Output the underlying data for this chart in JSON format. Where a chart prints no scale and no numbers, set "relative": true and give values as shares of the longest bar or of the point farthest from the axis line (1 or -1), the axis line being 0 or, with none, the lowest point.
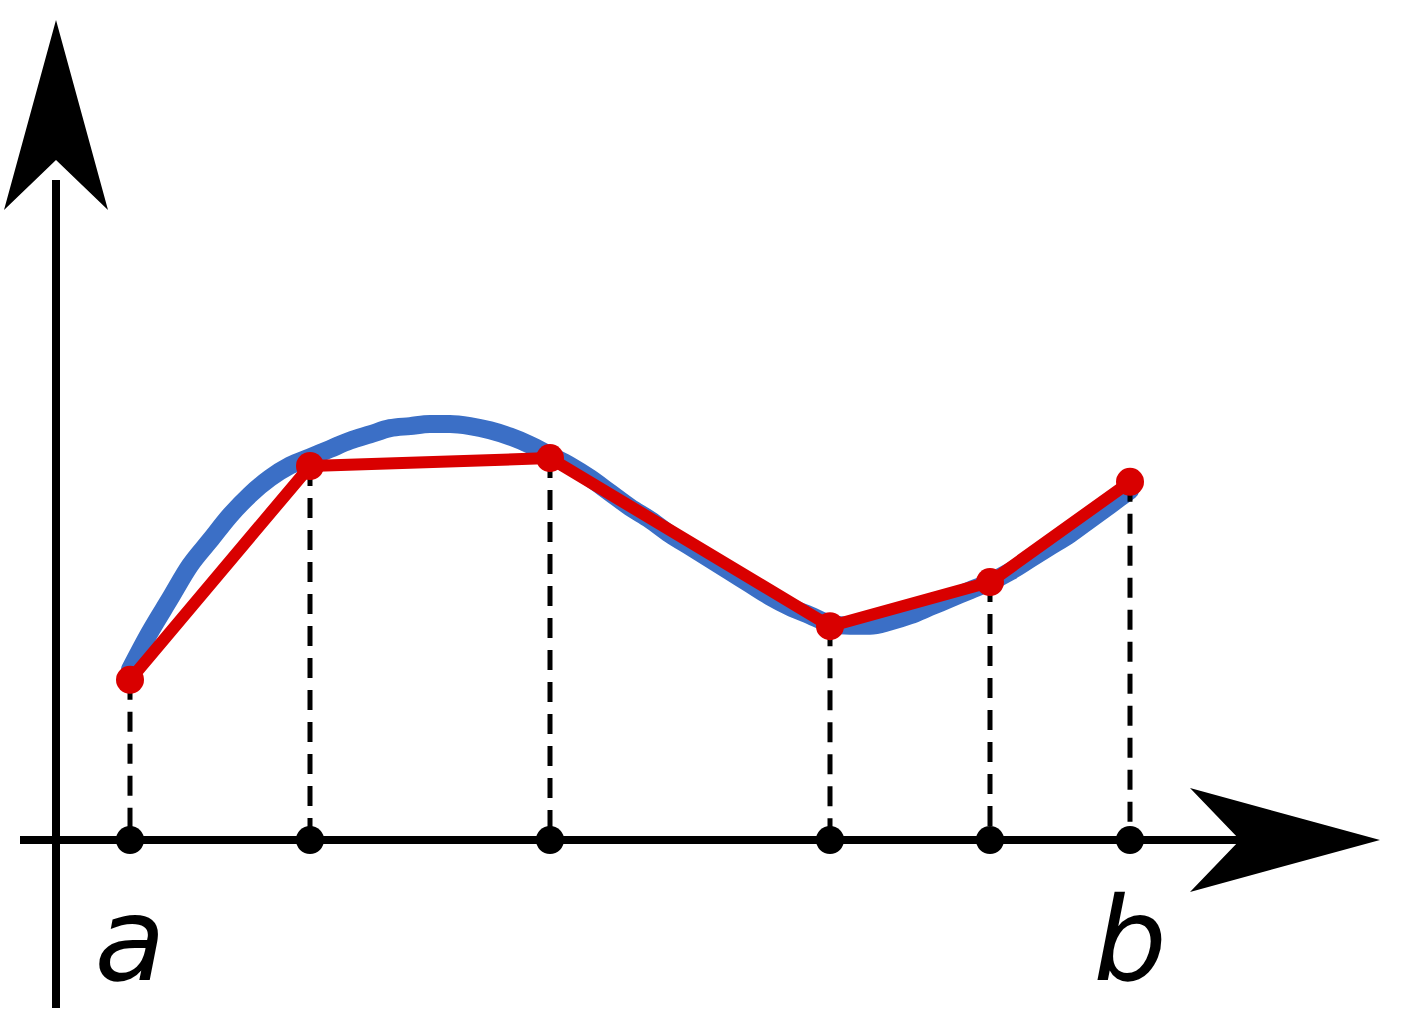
{
  "chart_data": {
    "type": "line",
    "relative": true,
    "categories": [
      "a",
      null,
      null,
      null,
      null,
      null,
      null,
      null,
      null,
      null,
      null,
      null,
      null,
      null,
      null,
      null,
      null,
      null,
      null,
      null,
      null,
      null,
      null,
      null,
      null,
      null,
      null,
      null,
      null,
      null,
      null,
      null,
      null,
      null,
      null,
      null,
      null,
      null,
      null,
      null,
      null,
      null,
      null,
      null,
      null,
      null,
      null,
      null,
      null,
      null,
      "b"
    ],
    "series": [
      {
        "color": "#3b6fc6",
        "marker": "none",
        "line_style": "solid",
        "values": [
          0.41,
          0.5,
          0.58,
          0.66,
          0.72,
          0.78,
          0.83,
          0.87,
          0.9,
          0.92,
          0.94,
          0.96,
          0.975,
          0.99,
          0.995,
          1,
          1,
          0.995,
          0.985,
          0.97,
          0.95,
          0.925,
          0.9,
          0.87,
          0.835,
          0.8,
          0.77,
          0.735,
          0.705,
          0.675,
          0.645,
          0.615,
          0.585,
          0.56,
          0.54,
          0.52,
          0.515,
          0.515,
          0.525,
          0.54,
          0.56,
          0.58,
          0.6,
          0.62,
          0.645,
          0.675,
          0.705,
          0.735,
          0.77,
          0.805,
          0.84
        ]
      },
      {
        "color": "#d90000",
        "marker": "circle",
        "line_style": "solid",
        "values": [
          0.385,
          null,
          null,
          null,
          null,
          null,
          null,
          null,
          null,
          0.899,
          null,
          null,
          null,
          null,
          null,
          null,
          null,
          null,
          null,
          null,
          null,
          0.918,
          null,
          null,
          null,
          null,
          null,
          null,
          null,
          null,
          null,
          null,
          null,
          null,
          null,
          0.514,
          null,
          null,
          null,
          null,
          null,
          null,
          null,
          0.62,
          null,
          null,
          null,
          null,
          null,
          null,
          0.861
        ]
      }
    ]
  }
}
